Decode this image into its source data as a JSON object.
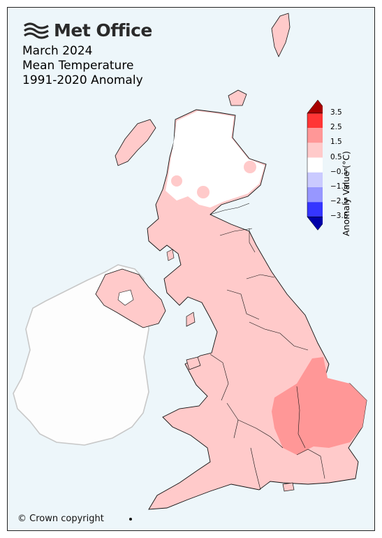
{
  "brand": {
    "name": "Met Office",
    "logo_icon": "met-office-waves-icon"
  },
  "title": {
    "line1": "March 2024",
    "line2": "Mean Temperature",
    "line3": "1991-2020 Anomaly"
  },
  "copyright": "© Crown copyright",
  "legend": {
    "label": "Anomaly Value (°C)",
    "ticks": [
      "3.5",
      "2.5",
      "1.5",
      "0.5",
      "−0.5",
      "−1.5",
      "−2.5",
      "−3.5"
    ],
    "bins": [
      {
        "range": ">3.5",
        "color": "#a80000"
      },
      {
        "range": "2.5 to 3.5",
        "color": "#ff3535"
      },
      {
        "range": "1.5 to 2.5",
        "color": "#ff9797"
      },
      {
        "range": "0.5 to 1.5",
        "color": "#ffcaca"
      },
      {
        "range": "-0.5 to 0.5",
        "color": "#ffffff"
      },
      {
        "range": "-1.5 to -0.5",
        "color": "#cacaff"
      },
      {
        "range": "-2.5 to -1.5",
        "color": "#9797ff"
      },
      {
        "range": "-3.5 to -2.5",
        "color": "#3535ff"
      },
      {
        "range": "<-3.5",
        "color": "#0000a8"
      }
    ]
  },
  "colors": {
    "sea": "#edf6fa",
    "ireland_fill": "#fdfdfd",
    "ireland_outline": "#c8c8c8",
    "land_outline": "#111111"
  }
}
